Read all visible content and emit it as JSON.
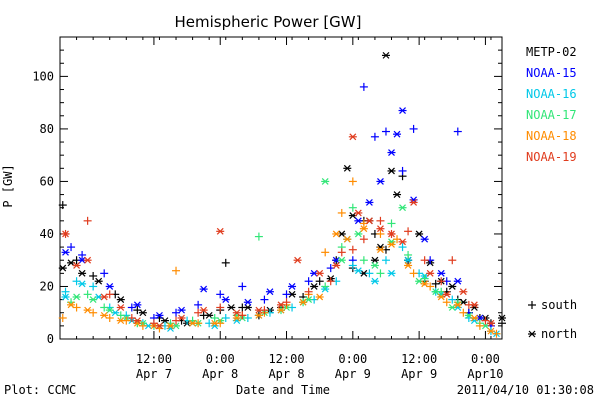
{
  "chart_data": {
    "type": "scatter",
    "title": "Hemispheric Power [GW]",
    "ylabel": "P [GW]",
    "xlabel": "Date and Time",
    "plot_credit": "Plot: CCMC",
    "timestamp": "2011/04/10 01:30:08",
    "ylim": [
      0,
      115
    ],
    "xlim_hours": [
      0,
      80
    ],
    "y_ticks": [
      0,
      20,
      40,
      60,
      80,
      100
    ],
    "x_ticks": [
      {
        "h": 17,
        "time": "12:00",
        "date": "Apr 7"
      },
      {
        "h": 29,
        "time": "0:00",
        "date": "Apr 8"
      },
      {
        "h": 41,
        "time": "12:00",
        "date": "Apr 8"
      },
      {
        "h": 53,
        "time": "0:00",
        "date": "Apr 9"
      },
      {
        "h": 65,
        "time": "12:00",
        "date": "Apr 9"
      },
      {
        "h": 77,
        "time": "0:00",
        "date": "Apr10"
      }
    ],
    "markers": [
      {
        "symbol": "+",
        "label": "south"
      },
      {
        "symbol": "*",
        "label": "north"
      }
    ],
    "series": [
      {
        "name": "METP-02",
        "color": "#000000",
        "south": [
          [
            0.5,
            51
          ],
          [
            3,
            30
          ],
          [
            6,
            24
          ],
          [
            10,
            17
          ],
          [
            14,
            11
          ],
          [
            18,
            8
          ],
          [
            22,
            7
          ],
          [
            26,
            9
          ],
          [
            29,
            11
          ],
          [
            30,
            29
          ],
          [
            33,
            12
          ],
          [
            36,
            9
          ],
          [
            40,
            12
          ],
          [
            44,
            16
          ],
          [
            47,
            22
          ],
          [
            50,
            30
          ],
          [
            53,
            27
          ],
          [
            55,
            45
          ],
          [
            57,
            40
          ],
          [
            59,
            34
          ],
          [
            62,
            62
          ],
          [
            63,
            30
          ],
          [
            66,
            22
          ],
          [
            68,
            21
          ],
          [
            70,
            18
          ],
          [
            72,
            15
          ],
          [
            74,
            10
          ],
          [
            76,
            8
          ],
          [
            78,
            6
          ],
          [
            80,
            6
          ]
        ],
        "north": [
          [
            0.5,
            27
          ],
          [
            2,
            29
          ],
          [
            4,
            25
          ],
          [
            7,
            22
          ],
          [
            11,
            15
          ],
          [
            15,
            10
          ],
          [
            19,
            7
          ],
          [
            23,
            6
          ],
          [
            27,
            9
          ],
          [
            31,
            12
          ],
          [
            34,
            12
          ],
          [
            38,
            11
          ],
          [
            42,
            17
          ],
          [
            46,
            20
          ],
          [
            49,
            23
          ],
          [
            51,
            40
          ],
          [
            52,
            65
          ],
          [
            53,
            47
          ],
          [
            55,
            25
          ],
          [
            56,
            45
          ],
          [
            57,
            30
          ],
          [
            58,
            35
          ],
          [
            59,
            108
          ],
          [
            60,
            64
          ],
          [
            61,
            55
          ],
          [
            63,
            30
          ],
          [
            65,
            40
          ],
          [
            67,
            29
          ],
          [
            69,
            22
          ],
          [
            71,
            20
          ],
          [
            73,
            14
          ],
          [
            75,
            12
          ],
          [
            77,
            8
          ],
          [
            80,
            8
          ]
        ]
      },
      {
        "name": "NOAA-15",
        "color": "#0000ff",
        "south": [
          [
            2,
            35
          ],
          [
            4,
            32
          ],
          [
            8,
            25
          ],
          [
            13,
            12
          ],
          [
            17,
            8
          ],
          [
            21,
            10
          ],
          [
            25,
            13
          ],
          [
            29,
            17
          ],
          [
            33,
            20
          ],
          [
            37,
            15
          ],
          [
            41,
            17
          ],
          [
            45,
            22
          ],
          [
            49,
            27
          ],
          [
            53,
            30
          ],
          [
            55,
            96
          ],
          [
            57,
            77
          ],
          [
            59,
            79
          ],
          [
            62,
            64
          ],
          [
            64,
            80
          ],
          [
            67,
            30
          ],
          [
            70,
            22
          ],
          [
            72,
            79
          ],
          [
            74,
            10
          ],
          [
            78,
            5
          ]
        ],
        "north": [
          [
            1,
            33
          ],
          [
            4,
            30
          ],
          [
            9,
            20
          ],
          [
            14,
            13
          ],
          [
            18,
            9
          ],
          [
            22,
            11
          ],
          [
            26,
            19
          ],
          [
            30,
            15
          ],
          [
            34,
            14
          ],
          [
            38,
            18
          ],
          [
            42,
            20
          ],
          [
            46,
            25
          ],
          [
            50,
            30
          ],
          [
            54,
            45
          ],
          [
            56,
            52
          ],
          [
            58,
            60
          ],
          [
            60,
            71
          ],
          [
            61,
            78
          ],
          [
            62,
            87
          ],
          [
            64,
            53
          ],
          [
            66,
            38
          ],
          [
            69,
            25
          ],
          [
            72,
            22
          ],
          [
            76,
            8
          ]
        ]
      },
      {
        "name": "NOAA-16",
        "color": "#00c8e8",
        "south": [
          [
            1,
            18
          ],
          [
            3,
            22
          ],
          [
            6,
            20
          ],
          [
            9,
            12
          ],
          [
            12,
            9
          ],
          [
            15,
            6
          ],
          [
            19,
            5
          ],
          [
            23,
            7
          ],
          [
            27,
            6
          ],
          [
            30,
            8
          ],
          [
            34,
            8
          ],
          [
            38,
            10
          ],
          [
            42,
            12
          ],
          [
            46,
            15
          ],
          [
            50,
            22
          ],
          [
            53,
            28
          ],
          [
            56,
            25
          ],
          [
            59,
            30
          ],
          [
            62,
            35
          ],
          [
            65,
            25
          ],
          [
            68,
            18
          ],
          [
            71,
            15
          ],
          [
            74,
            8
          ],
          [
            78,
            3
          ]
        ],
        "north": [
          [
            1,
            16
          ],
          [
            4,
            21
          ],
          [
            7,
            16
          ],
          [
            10,
            10
          ],
          [
            13,
            7
          ],
          [
            16,
            5
          ],
          [
            20,
            4
          ],
          [
            24,
            6
          ],
          [
            28,
            5
          ],
          [
            32,
            7
          ],
          [
            36,
            9
          ],
          [
            40,
            11
          ],
          [
            44,
            14
          ],
          [
            48,
            19
          ],
          [
            52,
            38
          ],
          [
            54,
            26
          ],
          [
            57,
            22
          ],
          [
            60,
            25
          ],
          [
            63,
            30
          ],
          [
            66,
            24
          ],
          [
            69,
            17
          ],
          [
            72,
            12
          ],
          [
            75,
            7
          ],
          [
            79,
            2
          ]
        ]
      },
      {
        "name": "NOAA-17",
        "color": "#32e678",
        "south": [
          [
            2,
            14
          ],
          [
            5,
            17
          ],
          [
            8,
            12
          ],
          [
            11,
            9
          ],
          [
            14,
            6
          ],
          [
            17,
            5
          ],
          [
            20,
            6
          ],
          [
            24,
            7
          ],
          [
            28,
            8
          ],
          [
            32,
            9
          ],
          [
            36,
            39
          ],
          [
            40,
            11
          ],
          [
            44,
            14
          ],
          [
            48,
            20
          ],
          [
            51,
            35
          ],
          [
            53,
            50
          ],
          [
            55,
            30
          ],
          [
            58,
            25
          ],
          [
            60,
            44
          ],
          [
            63,
            32
          ],
          [
            66,
            23
          ],
          [
            69,
            18
          ],
          [
            72,
            14
          ],
          [
            76,
            6
          ]
        ],
        "north": [
          [
            3,
            16
          ],
          [
            6,
            15
          ],
          [
            9,
            11
          ],
          [
            12,
            8
          ],
          [
            15,
            6
          ],
          [
            18,
            5
          ],
          [
            21,
            5
          ],
          [
            25,
            6
          ],
          [
            29,
            7
          ],
          [
            33,
            8
          ],
          [
            37,
            10
          ],
          [
            41,
            12
          ],
          [
            45,
            15
          ],
          [
            48,
            60
          ],
          [
            51,
            30
          ],
          [
            54,
            40
          ],
          [
            57,
            28
          ],
          [
            60,
            37
          ],
          [
            62,
            50
          ],
          [
            65,
            22
          ],
          [
            68,
            18
          ],
          [
            71,
            12
          ],
          [
            74,
            9
          ],
          [
            77,
            5
          ]
        ]
      },
      {
        "name": "NOAA-18",
        "color": "#ff8c00",
        "south": [
          [
            0.5,
            8
          ],
          [
            3,
            12
          ],
          [
            6,
            10
          ],
          [
            9,
            8
          ],
          [
            12,
            7
          ],
          [
            15,
            5
          ],
          [
            18,
            4
          ],
          [
            21,
            26
          ],
          [
            25,
            6
          ],
          [
            29,
            6
          ],
          [
            33,
            9
          ],
          [
            37,
            10
          ],
          [
            41,
            13
          ],
          [
            45,
            17
          ],
          [
            48,
            33
          ],
          [
            51,
            48
          ],
          [
            53,
            60
          ],
          [
            55,
            44
          ],
          [
            58,
            40
          ],
          [
            61,
            38
          ],
          [
            64,
            25
          ],
          [
            67,
            20
          ],
          [
            70,
            14
          ],
          [
            73,
            10
          ],
          [
            76,
            5
          ],
          [
            79,
            2
          ]
        ],
        "north": [
          [
            2,
            13
          ],
          [
            5,
            11
          ],
          [
            8,
            9
          ],
          [
            11,
            7
          ],
          [
            14,
            6
          ],
          [
            17,
            5
          ],
          [
            20,
            5
          ],
          [
            24,
            6
          ],
          [
            28,
            6
          ],
          [
            32,
            8
          ],
          [
            36,
            9
          ],
          [
            40,
            11
          ],
          [
            44,
            14
          ],
          [
            47,
            16
          ],
          [
            50,
            40
          ],
          [
            52,
            38
          ],
          [
            55,
            42
          ],
          [
            58,
            34
          ],
          [
            60,
            36
          ],
          [
            63,
            28
          ],
          [
            66,
            21
          ],
          [
            69,
            16
          ],
          [
            72,
            13
          ],
          [
            75,
            8
          ],
          [
            78,
            3
          ]
        ]
      },
      {
        "name": "NOAA-19",
        "color": "#e03c1e",
        "south": [
          [
            1,
            40
          ],
          [
            5,
            45
          ],
          [
            9,
            17
          ],
          [
            13,
            8
          ],
          [
            17,
            6
          ],
          [
            21,
            7
          ],
          [
            25,
            10
          ],
          [
            29,
            12
          ],
          [
            33,
            9
          ],
          [
            37,
            11
          ],
          [
            41,
            14
          ],
          [
            45,
            18
          ],
          [
            49,
            22
          ],
          [
            51,
            33
          ],
          [
            53,
            34
          ],
          [
            55,
            38
          ],
          [
            58,
            45
          ],
          [
            60,
            40
          ],
          [
            63,
            41
          ],
          [
            66,
            30
          ],
          [
            69,
            22
          ],
          [
            71,
            30
          ],
          [
            74,
            13
          ],
          [
            77,
            7
          ]
        ],
        "north": [
          [
            1,
            40
          ],
          [
            3,
            28
          ],
          [
            5,
            30
          ],
          [
            8,
            16
          ],
          [
            11,
            12
          ],
          [
            14,
            7
          ],
          [
            18,
            5
          ],
          [
            22,
            8
          ],
          [
            26,
            11
          ],
          [
            29,
            41
          ],
          [
            32,
            10
          ],
          [
            36,
            11
          ],
          [
            40,
            13
          ],
          [
            43,
            30
          ],
          [
            47,
            25
          ],
          [
            50,
            28
          ],
          [
            53,
            77
          ],
          [
            54,
            48
          ],
          [
            56,
            45
          ],
          [
            58,
            42
          ],
          [
            60,
            40
          ],
          [
            62,
            37
          ],
          [
            64,
            52
          ],
          [
            67,
            25
          ],
          [
            70,
            17
          ],
          [
            73,
            18
          ],
          [
            75,
            13
          ],
          [
            78,
            6
          ]
        ]
      }
    ]
  }
}
